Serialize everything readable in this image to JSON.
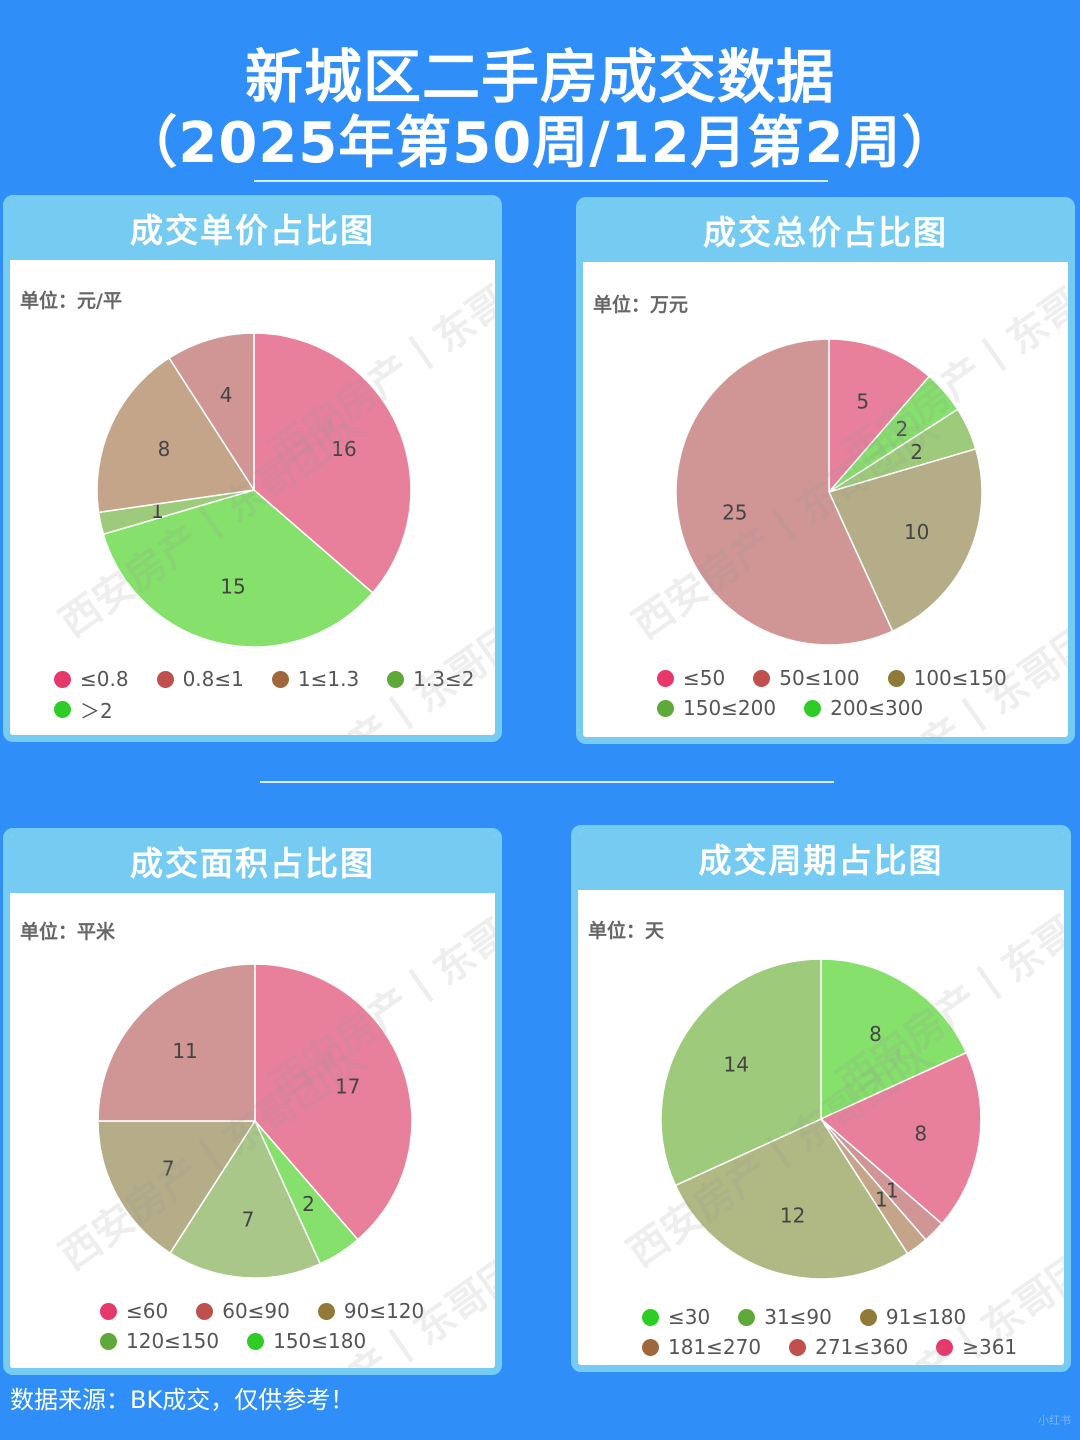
{
  "header": {
    "title_line1": "新城区二手房成交数据",
    "title_line2": "（2025年第50周/12月第2周）"
  },
  "watermark": "西安房产丨东哥团队",
  "footer": {
    "source": "数据来源：BK成交，仅供参考！",
    "corner_mark": "小红书"
  },
  "colors": {
    "background": "#2f8ef7",
    "card_border": "#75cbf2"
  },
  "chart_data": [
    {
      "id": "unit_price",
      "type": "pie",
      "title": "成交单价占比图",
      "unit_label": "单位：元/平",
      "legend": [
        "≤0.8",
        "0.8≤1",
        "1≤1.3",
        "1.3≤2",
        "＞2"
      ],
      "legend_colors": [
        "#e6386b",
        "#c0504d",
        "#a0673a",
        "#5fa83a",
        "#2ecc26"
      ],
      "slices": [
        {
          "value": 16,
          "color": "#e8809c"
        },
        {
          "value": 15,
          "color": "#86e06c"
        },
        {
          "value": 1,
          "color": "#9dcb7b"
        },
        {
          "value": 8,
          "color": "#c4a58a"
        },
        {
          "value": 4,
          "color": "#d09696"
        }
      ]
    },
    {
      "id": "total_price",
      "type": "pie",
      "title": "成交总价占比图",
      "unit_label": "单位：万元",
      "legend": [
        "≤50",
        "50≤100",
        "100≤150",
        "150≤200",
        "200≤300"
      ],
      "legend_colors": [
        "#e6386b",
        "#c0504d",
        "#8f7b37",
        "#5fa83a",
        "#2ecc26"
      ],
      "slices": [
        {
          "value": 5,
          "color": "#e8809c"
        },
        {
          "value": 2,
          "color": "#86e06c"
        },
        {
          "value": 2,
          "color": "#9dcb7b"
        },
        {
          "value": 10,
          "color": "#b4ad88"
        },
        {
          "value": 25,
          "color": "#d09696"
        }
      ]
    },
    {
      "id": "area",
      "type": "pie",
      "title": "成交面积占比图",
      "unit_label": "单位：平米",
      "legend": [
        "≤60",
        "60≤90",
        "90≤120",
        "120≤150",
        "150≤180"
      ],
      "legend_colors": [
        "#e6386b",
        "#c0504d",
        "#8f7b37",
        "#5fa83a",
        "#2ecc26"
      ],
      "slices": [
        {
          "value": 17,
          "color": "#e8809c"
        },
        {
          "value": 2,
          "color": "#86e06c"
        },
        {
          "value": 7,
          "color": "#a8c788"
        },
        {
          "value": 7,
          "color": "#b4ad88"
        },
        {
          "value": 11,
          "color": "#d09696"
        }
      ]
    },
    {
      "id": "cycle",
      "type": "pie",
      "title": "成交周期占比图",
      "unit_label": "单位：天",
      "legend": [
        "≤30",
        "31≤90",
        "91≤180",
        "181≤270",
        "271≤360",
        "≥361"
      ],
      "legend_colors": [
        "#2ecc26",
        "#5fa83a",
        "#8f7b37",
        "#a0673a",
        "#c0504d",
        "#e6386b"
      ],
      "slices": [
        {
          "value": 8,
          "color": "#86e06c"
        },
        {
          "value": 8,
          "color": "#e8809c"
        },
        {
          "value": 1,
          "color": "#d09696"
        },
        {
          "value": 1,
          "color": "#c4a58a"
        },
        {
          "value": 12,
          "color": "#b0b884"
        },
        {
          "value": 14,
          "color": "#9dcb7b"
        }
      ]
    }
  ]
}
